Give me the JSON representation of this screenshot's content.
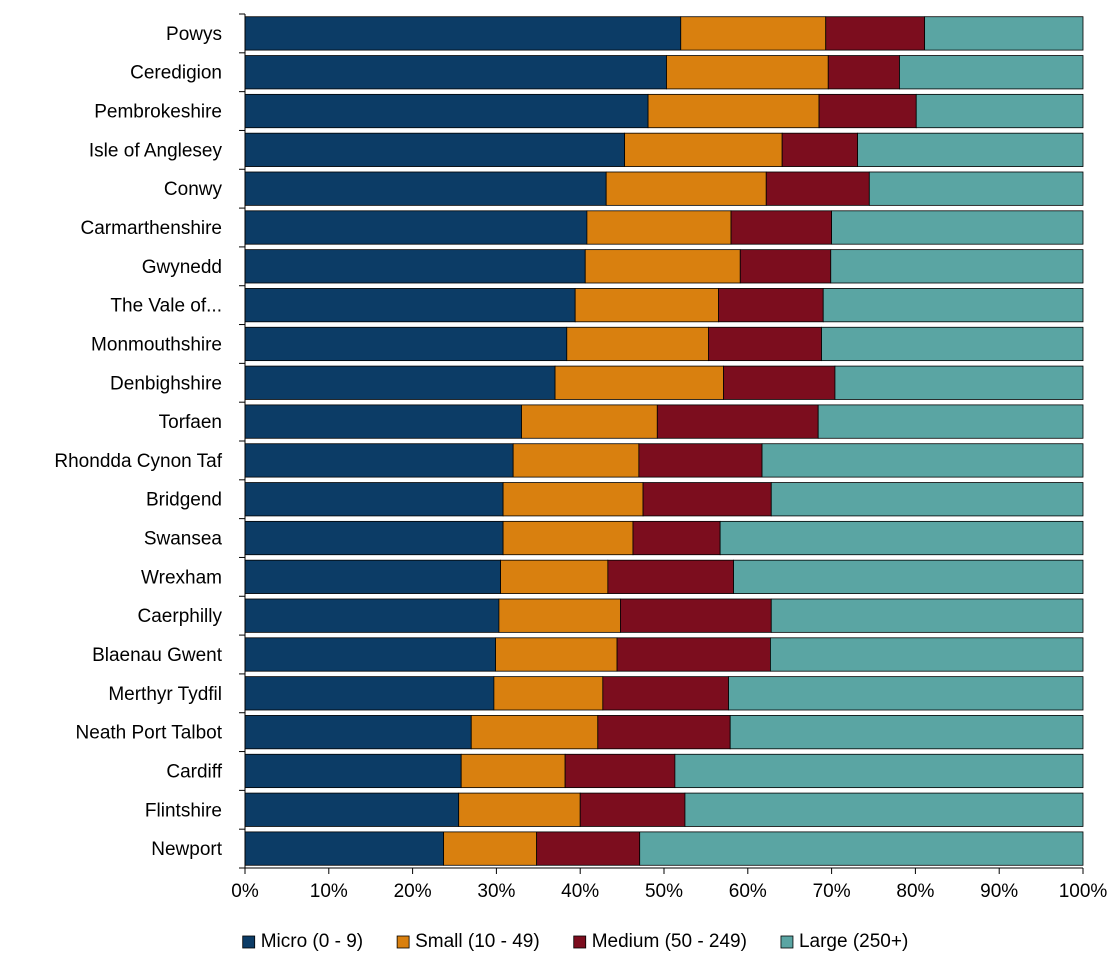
{
  "chart_data": {
    "type": "bar",
    "orientation": "horizontal",
    "stacked": "percent",
    "categories": [
      "Powys",
      "Ceredigion",
      "Pembrokeshire",
      "Isle of Anglesey",
      "Conwy",
      "Carmarthenshire",
      "Gwynedd",
      "The Vale of...",
      "Monmouthshire",
      "Denbighshire",
      "Torfaen",
      "Rhondda Cynon Taf",
      "Bridgend",
      "Swansea",
      "Wrexham",
      "Caerphilly",
      "Blaenau Gwent",
      "Merthyr Tydfil",
      "Neath Port Talbot",
      "Cardiff",
      "Flintshire",
      "Newport"
    ],
    "series": [
      {
        "name": "Micro (0 - 9)",
        "color": "#0c3c66",
        "values": [
          52,
          50.3,
          48.1,
          45.3,
          43.1,
          40.8,
          40.6,
          39.4,
          38.4,
          37,
          33,
          32,
          30.8,
          30.8,
          30.5,
          30.3,
          29.9,
          29.7,
          27,
          25.8,
          25.5,
          23.7
        ]
      },
      {
        "name": "Small (10 - 49)",
        "color": "#d9800f",
        "values": [
          17.3,
          19.3,
          20.4,
          18.8,
          19.1,
          17.2,
          18.5,
          17.1,
          16.9,
          20.1,
          16.2,
          15,
          16.7,
          15.5,
          12.8,
          14.5,
          14.5,
          13,
          15.1,
          12.4,
          14.5,
          11.1
        ]
      },
      {
        "name": "Medium (50 - 249)",
        "color": "#7c0d1e",
        "values": [
          11.8,
          8.5,
          11.6,
          9,
          12.3,
          12,
          10.8,
          12.5,
          13.5,
          13.3,
          19.2,
          14.7,
          15.3,
          10.4,
          15,
          18,
          18.3,
          15,
          15.8,
          13.1,
          12.5,
          12.3
        ]
      },
      {
        "name": "Large (250+)",
        "color": "#5aa5a3",
        "values": [
          18.9,
          21.9,
          19.9,
          26.9,
          25.5,
          30,
          30.1,
          31,
          31.2,
          29.6,
          31.6,
          38.3,
          37.2,
          43.3,
          41.7,
          37.2,
          37.3,
          42.3,
          42.1,
          48.7,
          47.5,
          52.9
        ]
      }
    ],
    "x_ticks": [
      "0%",
      "10%",
      "20%",
      "30%",
      "40%",
      "50%",
      "60%",
      "70%",
      "80%",
      "90%",
      "100%"
    ],
    "xlim": [
      0,
      100
    ],
    "title": "",
    "xlabel": "",
    "ylabel": "",
    "grid": false,
    "legend_position": "bottom"
  }
}
